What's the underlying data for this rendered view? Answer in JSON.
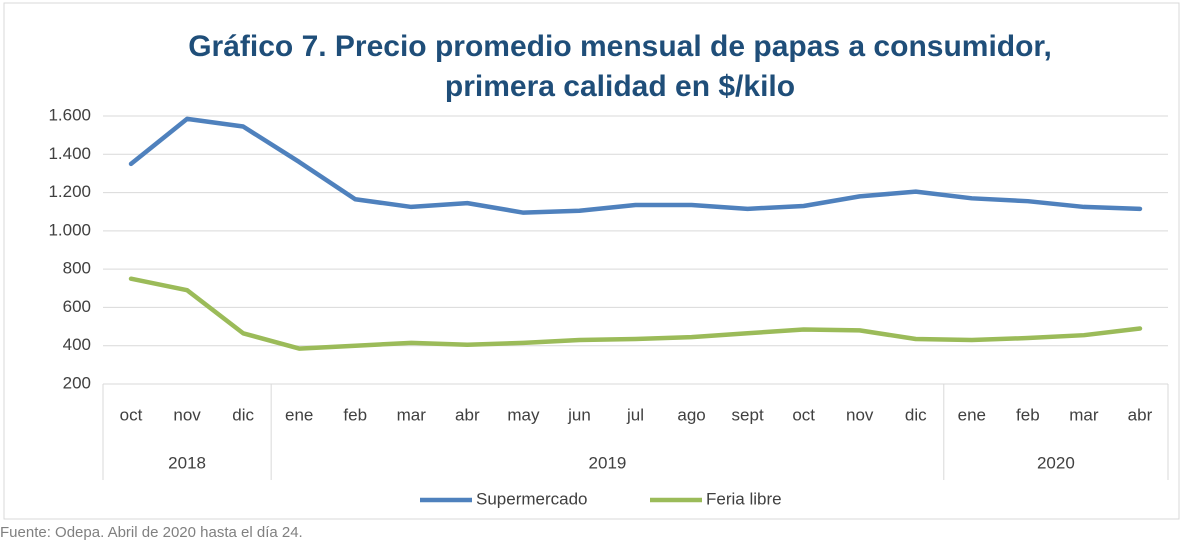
{
  "chart_data": {
    "type": "line",
    "title_lines": [
      "Gráfico 7. Precio promedio mensual de papas a consumidor,",
      "primera calidad en $/kilo"
    ],
    "categories": [
      "oct",
      "nov",
      "dic",
      "ene",
      "feb",
      "mar",
      "abr",
      "may",
      "jun",
      "jul",
      "ago",
      "sept",
      "oct",
      "nov",
      "dic",
      "ene",
      "feb",
      "mar",
      "abr"
    ],
    "groups": [
      {
        "label": "2018",
        "span": 3
      },
      {
        "label": "2019",
        "span": 12
      },
      {
        "label": "2020",
        "span": 4
      }
    ],
    "series": [
      {
        "name": "Supermercado",
        "color": "#4f81bd",
        "values": [
          1350,
          1585,
          1545,
          1360,
          1165,
          1125,
          1145,
          1095,
          1105,
          1135,
          1135,
          1115,
          1130,
          1180,
          1205,
          1170,
          1155,
          1125,
          1115
        ]
      },
      {
        "name": "Feria libre",
        "color": "#9bbb59",
        "values": [
          750,
          690,
          465,
          385,
          400,
          415,
          405,
          415,
          430,
          435,
          445,
          465,
          485,
          480,
          435,
          430,
          440,
          455,
          490
        ]
      }
    ],
    "ylim": [
      200,
      1600
    ],
    "yticks": [
      200,
      400,
      600,
      800,
      {
        "value": 1000,
        "label": "1.000"
      },
      {
        "value": 1200,
        "label": "1.200"
      },
      {
        "value": 1400,
        "label": "1.400"
      },
      {
        "value": 1600,
        "label": "1.600"
      }
    ],
    "grid": true,
    "legend": "bottom",
    "source": "Fuente: Odepa. Abril de 2020 hasta el día 24."
  }
}
